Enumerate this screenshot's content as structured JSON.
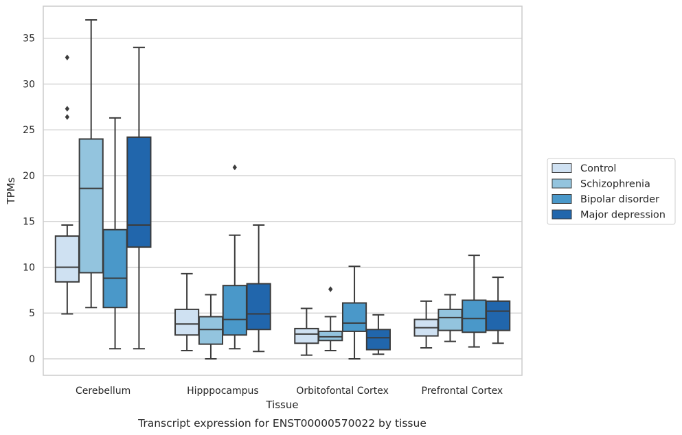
{
  "caption": "Transcript expression for ENST00000570022 by tissue",
  "chart_data": {
    "type": "box",
    "xlabel": "Tissue",
    "ylabel": "TPMs",
    "ylim": [
      -1.8,
      38.5
    ],
    "yticks": [
      0,
      5,
      10,
      15,
      20,
      25,
      30,
      35
    ],
    "grid": "horizontal",
    "legend_position": "right",
    "categories": [
      "Cerebellum",
      "Hipppocampus",
      "Orbitofontal Cortex",
      "Prefrontal Cortex"
    ],
    "series": [
      {
        "name": "Control",
        "color": "#cfe1f2",
        "boxes": [
          {
            "whisker_low": 4.9,
            "q1": 8.4,
            "median": 10.0,
            "q3": 13.4,
            "whisker_high": 14.6,
            "outliers": [
              26.4,
              27.3,
              32.9
            ]
          },
          {
            "whisker_low": 0.9,
            "q1": 2.6,
            "median": 3.8,
            "q3": 5.4,
            "whisker_high": 9.3,
            "outliers": []
          },
          {
            "whisker_low": 0.4,
            "q1": 1.7,
            "median": 2.7,
            "q3": 3.3,
            "whisker_high": 5.5,
            "outliers": []
          },
          {
            "whisker_low": 1.2,
            "q1": 2.5,
            "median": 3.4,
            "q3": 4.3,
            "whisker_high": 6.3,
            "outliers": []
          }
        ]
      },
      {
        "name": "Schizophrenia",
        "color": "#93c4de",
        "boxes": [
          {
            "whisker_low": 5.6,
            "q1": 9.4,
            "median": 18.6,
            "q3": 24.0,
            "whisker_high": 37.0,
            "outliers": []
          },
          {
            "whisker_low": 0.0,
            "q1": 1.6,
            "median": 3.2,
            "q3": 4.6,
            "whisker_high": 7.0,
            "outliers": []
          },
          {
            "whisker_low": 0.9,
            "q1": 2.0,
            "median": 2.4,
            "q3": 3.0,
            "whisker_high": 4.6,
            "outliers": [
              7.6
            ]
          },
          {
            "whisker_low": 1.9,
            "q1": 3.1,
            "median": 4.5,
            "q3": 5.4,
            "whisker_high": 7.0,
            "outliers": []
          }
        ]
      },
      {
        "name": "Bipolar disorder",
        "color": "#4a98c9",
        "boxes": [
          {
            "whisker_low": 1.1,
            "q1": 5.6,
            "median": 8.8,
            "q3": 14.1,
            "whisker_high": 26.3,
            "outliers": []
          },
          {
            "whisker_low": 1.1,
            "q1": 2.6,
            "median": 4.3,
            "q3": 8.0,
            "whisker_high": 13.5,
            "outliers": [
              20.9
            ]
          },
          {
            "whisker_low": 0.0,
            "q1": 3.0,
            "median": 3.9,
            "q3": 6.1,
            "whisker_high": 10.1,
            "outliers": []
          },
          {
            "whisker_low": 1.3,
            "q1": 2.9,
            "median": 4.4,
            "q3": 6.4,
            "whisker_high": 11.3,
            "outliers": []
          }
        ]
      },
      {
        "name": "Major depression",
        "color": "#2166ac",
        "boxes": [
          {
            "whisker_low": 1.1,
            "q1": 12.2,
            "median": 14.6,
            "q3": 24.2,
            "whisker_high": 34.0,
            "outliers": []
          },
          {
            "whisker_low": 0.8,
            "q1": 3.2,
            "median": 4.9,
            "q3": 8.2,
            "whisker_high": 14.6,
            "outliers": []
          },
          {
            "whisker_low": 0.5,
            "q1": 1.0,
            "median": 2.3,
            "q3": 3.2,
            "whisker_high": 4.8,
            "outliers": []
          },
          {
            "whisker_low": 1.7,
            "q1": 3.1,
            "median": 5.2,
            "q3": 6.3,
            "whisker_high": 8.9,
            "outliers": []
          }
        ]
      }
    ]
  }
}
